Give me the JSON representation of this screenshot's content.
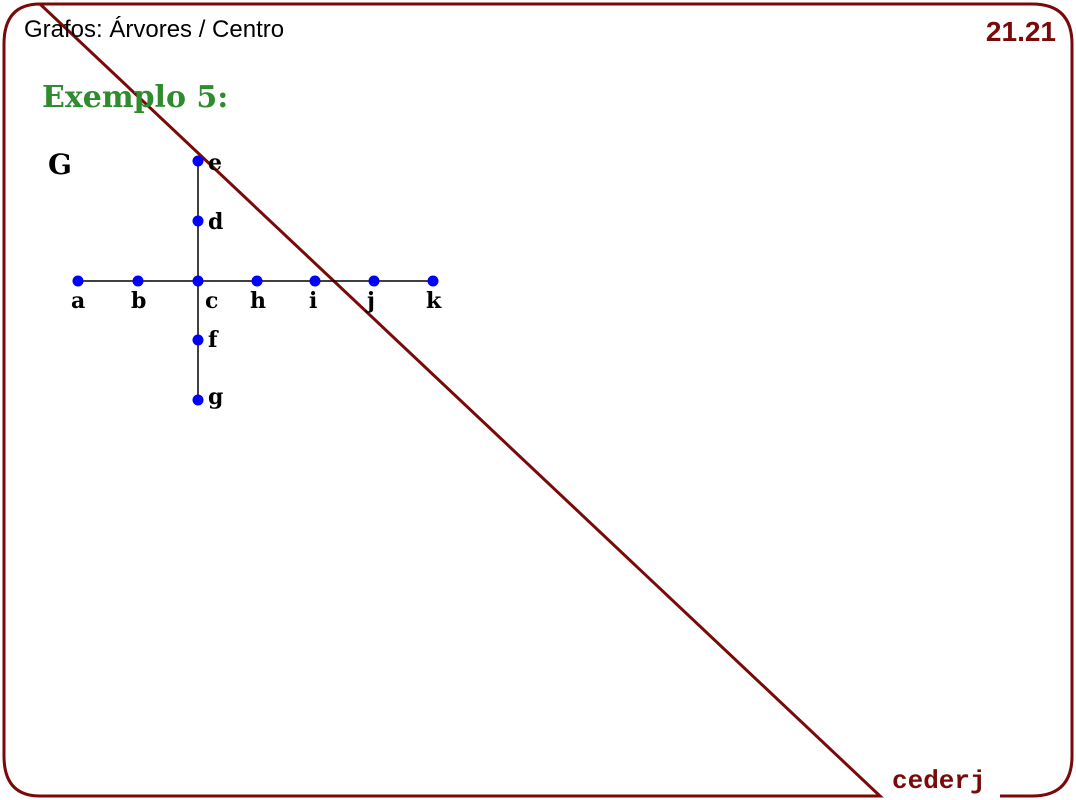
{
  "header": {
    "title": "Grafos: Árvores / Centro",
    "page_number": "21.21"
  },
  "example": {
    "title": "Exemplo 5:"
  },
  "graph": {
    "name": "G",
    "vertex_color": "#0000ff",
    "vertices": [
      "a",
      "b",
      "c",
      "h",
      "i",
      "j",
      "k",
      "e",
      "d",
      "f",
      "g"
    ],
    "edges": [
      [
        "a",
        "b"
      ],
      [
        "b",
        "c"
      ],
      [
        "c",
        "h"
      ],
      [
        "h",
        "i"
      ],
      [
        "i",
        "j"
      ],
      [
        "j",
        "k"
      ],
      [
        "e",
        "d"
      ],
      [
        "d",
        "c"
      ],
      [
        "c",
        "f"
      ],
      [
        "f",
        "g"
      ]
    ]
  },
  "footer": {
    "brand": "cederj"
  },
  "colors": {
    "border": "#7a0a0a",
    "title_green": "#2e8b2e",
    "accent": "#7a0a0a"
  }
}
